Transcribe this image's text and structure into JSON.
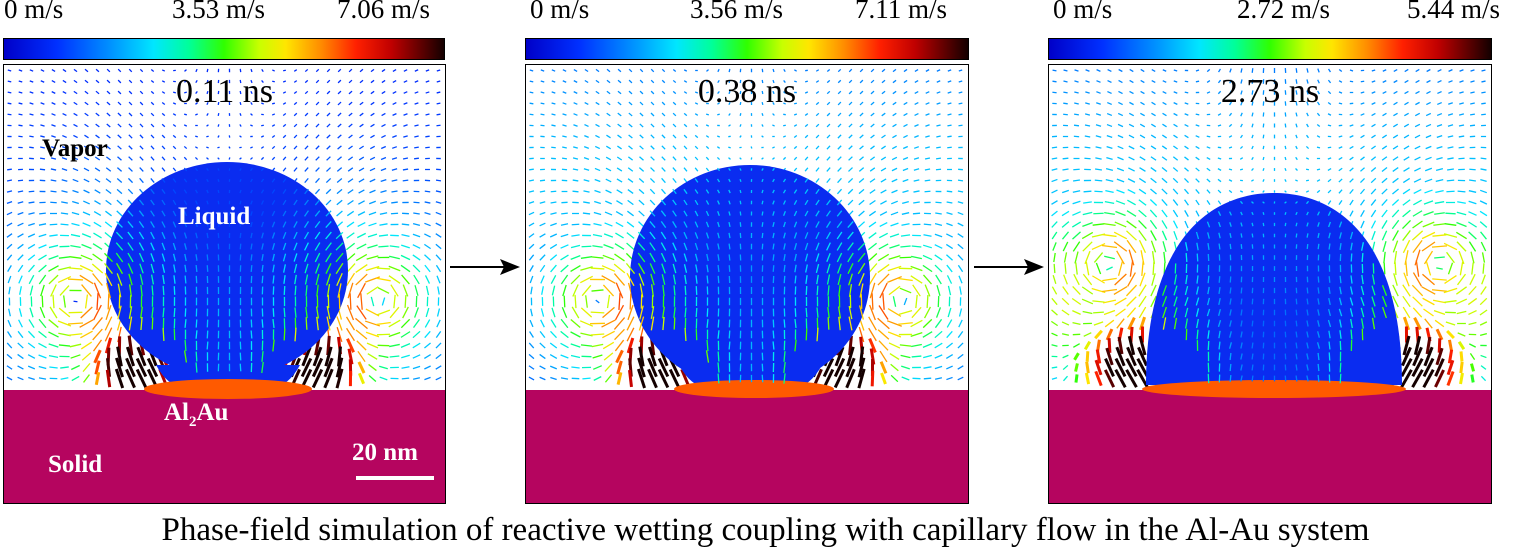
{
  "panels": [
    {
      "colorbar": {
        "min": "0 m/s",
        "mid": "3.53 m/s",
        "max": "7.06 m/s",
        "max_value": 7.06
      },
      "time": "0.11 ns",
      "labels": {
        "vapor": "Vapor",
        "liquid": "Liquid",
        "compound_main": "Al",
        "compound_sub": "2",
        "compound_rest": "Au",
        "solid": "Solid",
        "scale_bar": "20 nm"
      }
    },
    {
      "colorbar": {
        "min": "0 m/s",
        "mid": "3.56 m/s",
        "max": "7.11 m/s",
        "max_value": 7.11
      },
      "time": "0.38 ns"
    },
    {
      "colorbar": {
        "min": "0 m/s",
        "mid": "2.72 m/s",
        "max": "5.44 m/s",
        "max_value": 5.44
      },
      "time": "2.73 ns"
    }
  ],
  "colors": {
    "liquid": "#0a2cf0",
    "solid": "#b5055f",
    "intermetallic": "#ff5a00",
    "vapor": "#ffffff"
  },
  "caption": "Phase-field simulation of reactive wetting coupling with capillary flow in the Al-Au system"
}
